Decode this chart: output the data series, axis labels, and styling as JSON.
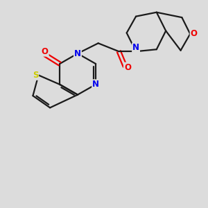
{
  "bg_color": "#dcdcdc",
  "bond_color": "#1a1a1a",
  "atom_colors": {
    "N": "#0000ee",
    "O": "#ee0000",
    "S": "#cccc00"
  },
  "figsize": [
    3.0,
    3.0
  ],
  "dpi": 100,
  "xlim": [
    0,
    10
  ],
  "ylim": [
    0,
    10
  ]
}
